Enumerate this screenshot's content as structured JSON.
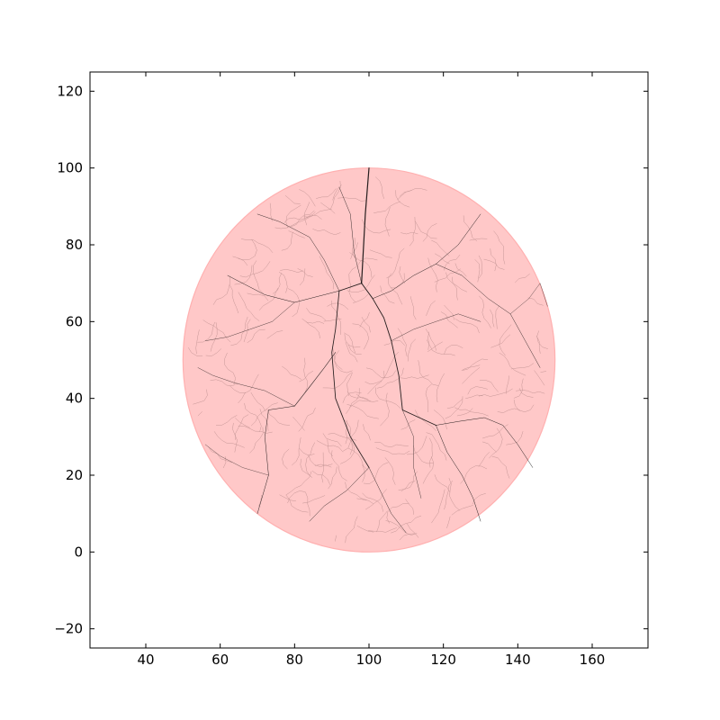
{
  "chart_data": {
    "type": "scatter",
    "title": "",
    "xlabel": "",
    "ylabel": "",
    "xlim": [
      25,
      175
    ],
    "ylim": [
      -25,
      125
    ],
    "x_ticks": [
      40,
      60,
      80,
      100,
      120,
      140,
      160
    ],
    "y_ticks": [
      -20,
      0,
      20,
      40,
      60,
      80,
      100,
      120
    ],
    "x_tick_labels": [
      "40",
      "60",
      "80",
      "100",
      "120",
      "140",
      "160"
    ],
    "y_tick_labels": [
      "−20",
      "0",
      "20",
      "40",
      "60",
      "80",
      "100",
      "120"
    ],
    "grid": false,
    "legend": "none",
    "circle": {
      "center": [
        100,
        50
      ],
      "radius": 50,
      "fill_color": "#ffc8c8",
      "edge_color": "#ffb0b0"
    },
    "tree_color": "#000000",
    "branches": [
      {
        "points": [
          [
            100,
            100
          ],
          [
            99,
            88
          ],
          [
            98,
            70
          ]
        ],
        "weight": 1.2
      },
      {
        "points": [
          [
            98,
            70
          ],
          [
            101,
            66
          ],
          [
            104,
            61
          ],
          [
            106,
            55
          ],
          [
            108,
            46
          ],
          [
            109,
            37
          ],
          [
            118,
            33
          ]
        ],
        "weight": 0.9
      },
      {
        "points": [
          [
            98,
            70
          ],
          [
            92,
            68
          ],
          [
            91,
            58
          ],
          [
            90,
            52
          ],
          [
            91,
            40
          ],
          [
            95,
            30
          ],
          [
            100,
            22
          ]
        ],
        "weight": 0.85
      },
      {
        "points": [
          [
            91,
            52
          ],
          [
            88,
            48
          ],
          [
            84,
            43
          ],
          [
            80,
            38
          ]
        ],
        "weight": 0.6
      },
      {
        "points": [
          [
            80,
            38
          ],
          [
            73,
            37
          ],
          [
            72,
            30
          ],
          [
            73,
            20
          ],
          [
            70,
            10
          ]
        ],
        "weight": 0.5
      },
      {
        "points": [
          [
            92,
            68
          ],
          [
            88,
            67
          ],
          [
            84,
            66
          ],
          [
            80,
            65
          ],
          [
            72,
            67
          ],
          [
            62,
            72
          ]
        ],
        "weight": 0.5
      },
      {
        "points": [
          [
            98,
            70
          ],
          [
            96,
            78
          ],
          [
            95,
            88
          ],
          [
            92,
            95
          ]
        ],
        "weight": 0.45
      },
      {
        "points": [
          [
            92,
            68
          ],
          [
            88,
            76
          ],
          [
            84,
            82
          ],
          [
            76,
            86
          ],
          [
            70,
            88
          ]
        ],
        "weight": 0.45
      },
      {
        "points": [
          [
            101,
            66
          ],
          [
            106,
            68
          ],
          [
            112,
            72
          ],
          [
            118,
            75
          ],
          [
            124,
            80
          ],
          [
            130,
            88
          ]
        ],
        "weight": 0.5
      },
      {
        "points": [
          [
            118,
            75
          ],
          [
            125,
            72
          ],
          [
            132,
            66
          ],
          [
            138,
            62
          ],
          [
            142,
            55
          ],
          [
            146,
            48
          ]
        ],
        "weight": 0.45
      },
      {
        "points": [
          [
            118,
            33
          ],
          [
            124,
            34
          ],
          [
            131,
            35
          ],
          [
            136,
            33
          ],
          [
            140,
            28
          ],
          [
            144,
            22
          ]
        ],
        "weight": 0.5
      },
      {
        "points": [
          [
            118,
            33
          ],
          [
            121,
            26
          ],
          [
            125,
            20
          ],
          [
            128,
            14
          ],
          [
            130,
            8
          ]
        ],
        "weight": 0.5
      },
      {
        "points": [
          [
            100,
            22
          ],
          [
            103,
            16
          ],
          [
            106,
            10
          ],
          [
            110,
            5
          ]
        ],
        "weight": 0.45
      },
      {
        "points": [
          [
            100,
            22
          ],
          [
            94,
            16
          ],
          [
            88,
            12
          ],
          [
            84,
            8
          ]
        ],
        "weight": 0.45
      },
      {
        "points": [
          [
            106,
            55
          ],
          [
            112,
            58
          ],
          [
            118,
            60
          ],
          [
            124,
            62
          ],
          [
            130,
            60
          ]
        ],
        "weight": 0.4
      },
      {
        "points": [
          [
            80,
            38
          ],
          [
            72,
            42
          ],
          [
            64,
            44
          ],
          [
            58,
            46
          ],
          [
            54,
            48
          ]
        ],
        "weight": 0.4
      },
      {
        "points": [
          [
            80,
            65
          ],
          [
            74,
            60
          ],
          [
            68,
            58
          ],
          [
            62,
            56
          ],
          [
            56,
            55
          ]
        ],
        "weight": 0.4
      },
      {
        "points": [
          [
            109,
            37
          ],
          [
            112,
            30
          ],
          [
            112,
            22
          ],
          [
            114,
            14
          ]
        ],
        "weight": 0.4
      },
      {
        "points": [
          [
            73,
            20
          ],
          [
            66,
            22
          ],
          [
            60,
            25
          ],
          [
            56,
            28
          ]
        ],
        "weight": 0.35
      },
      {
        "points": [
          [
            138,
            62
          ],
          [
            143,
            66
          ],
          [
            146,
            70
          ],
          [
            148,
            64
          ]
        ],
        "weight": 0.35
      }
    ]
  }
}
